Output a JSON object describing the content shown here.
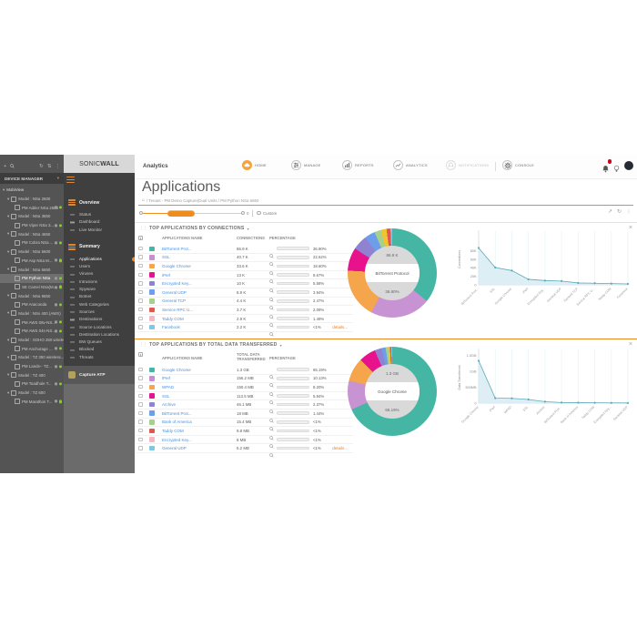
{
  "icons": {
    "close": "×",
    "caret_down": "▾",
    "grip": "⋮⋮",
    "home": "⌂",
    "plus": "+",
    "refresh": "↻",
    "sort": "⇅",
    "kebab": "⋮",
    "export": "↗"
  },
  "device_panel": {
    "header": "DEVICE MANAGER",
    "tree": [
      {
        "type": "root",
        "label": "MobiView"
      },
      {
        "type": "model",
        "label": "Model : NSa 2600"
      },
      {
        "type": "device",
        "label": "PM Adder NSa 2650"
      },
      {
        "type": "model",
        "label": "Model : NSa 3650"
      },
      {
        "type": "device",
        "label": "PM Viper NSa 3..."
      },
      {
        "type": "model",
        "label": "Model : NSa 4650"
      },
      {
        "type": "device",
        "label": "PM Cobra NSa ..."
      },
      {
        "type": "model",
        "label": "Model : NSa 5600"
      },
      {
        "type": "device",
        "label": "PM Asp NSa M..."
      },
      {
        "type": "model",
        "label": "Model : NSa 6650"
      },
      {
        "type": "device",
        "label": "PM Python NSa",
        "selected": true
      },
      {
        "type": "device",
        "label": "SE Camel NSa(M..."
      },
      {
        "type": "model",
        "label": "Model : NSa 9650"
      },
      {
        "type": "device",
        "label": "PM Anaconda"
      },
      {
        "type": "model",
        "label": "Model : NSv 400 (AWS)"
      },
      {
        "type": "device",
        "label": "PM AWS 08v-NS..."
      },
      {
        "type": "device",
        "label": "PM AWS 04s-NS..."
      },
      {
        "type": "model",
        "label": "Model : SOHO 250 wirele..."
      },
      {
        "type": "device",
        "label": "PM Anchorage ..."
      },
      {
        "type": "model",
        "label": "Model : TZ 350 wireless..."
      },
      {
        "type": "device",
        "label": "PM Lands-- TZ..."
      },
      {
        "type": "model",
        "label": "Model : TZ 400"
      },
      {
        "type": "device",
        "label": "PM Toadhole T..."
      },
      {
        "type": "model",
        "label": "Model : TZ 600"
      },
      {
        "type": "device",
        "label": "PM Marathon T..."
      }
    ]
  },
  "nav_panel": {
    "logo_left": "SONIC",
    "logo_right": "WALL",
    "sections": [
      {
        "label": "Overview",
        "items": [
          {
            "label": "Status"
          },
          {
            "label": "Dashboard"
          },
          {
            "label": "Live Monitor"
          }
        ]
      },
      {
        "label": "Summary",
        "items": [
          {
            "label": "Applications",
            "active": true
          },
          {
            "label": "Users"
          },
          {
            "label": "Viruses"
          },
          {
            "label": "Intrusions"
          },
          {
            "label": "Spyware"
          },
          {
            "label": "Botnet"
          },
          {
            "label": "Web Categories"
          },
          {
            "label": "Sources"
          },
          {
            "label": "Destinations"
          },
          {
            "label": "Source Locations"
          },
          {
            "label": "Destination Locations"
          },
          {
            "label": "BW Queues"
          },
          {
            "label": "Blocked"
          },
          {
            "label": "Threats"
          }
        ]
      }
    ],
    "capture_atp": "Capture ATP"
  },
  "topbar": {
    "product": "Analytics",
    "menu": [
      {
        "label": "HOME"
      },
      {
        "label": "MANAGE"
      },
      {
        "label": "REPORTS"
      },
      {
        "label": "ANALYTICS"
      },
      {
        "label": "NOTIFICATIONS",
        "disabled": true
      },
      {
        "label": "CONSOLE"
      }
    ]
  },
  "page": {
    "title": "Applications",
    "breadcrumb": "/ Tenant - PM Demo Capture(Dual Units / PM Python NSa 6650",
    "slider_value": "0",
    "custom_label": "Custom"
  },
  "sections": [
    {
      "title": "TOP APPLICATIONS BY CONNECTIONS",
      "columns": [
        "APPLICATIONS NAME",
        "CONNECTIONS",
        "PERCENTAGE"
      ],
      "details": "details...",
      "donut_center": {
        "value": "86.9 K",
        "label": "BitTorrent Protocol",
        "pct": "36.90%"
      },
      "rows": [
        {
          "name": "BitTorrent Prot...",
          "value": "86.9 K",
          "pct": "36.90%",
          "pct_value": 36.9,
          "color": "#45b5a4"
        },
        {
          "name": "SSL",
          "value": "40.7 K",
          "pct": "22.62%",
          "pct_value": 22.62,
          "color": "#c58fd1"
        },
        {
          "name": "Google Chrome",
          "value": "33.6 K",
          "pct": "18.60%",
          "pct_value": 18.6,
          "color": "#f5a54b"
        },
        {
          "name": "iPerf",
          "value": "13 K",
          "pct": "8.67%",
          "pct_value": 8.67,
          "color": "#e8138c"
        },
        {
          "name": "Encrypted Key...",
          "value": "10 K",
          "pct": "5.58%",
          "pct_value": 5.58,
          "color": "#8f83d1"
        },
        {
          "name": "General UDP",
          "value": "8.9 K",
          "pct": "3.94%",
          "pct_value": 3.94,
          "color": "#6d9eeb"
        },
        {
          "name": "General TCP",
          "value": "4.4 K",
          "pct": "2.47%",
          "pct_value": 2.47,
          "color": "#a8d08d"
        },
        {
          "name": "Service RPC U...",
          "value": "3.7 K",
          "pct": "2.09%",
          "pct_value": 2.09,
          "color": "#e2574c"
        },
        {
          "name": "Taddy COM",
          "value": "2.9 K",
          "pct": "1.49%",
          "pct_value": 1.49,
          "color": "#f4b8c1"
        },
        {
          "name": "Facebook",
          "value": "2.2 K",
          "pct": "<1%",
          "pct_value": 0.64,
          "color": "#7ec8e3"
        }
      ]
    },
    {
      "title": "TOP APPLICATIONS BY TOTAL DATA TRANSFERRED",
      "columns": [
        "APPLICATIONS NAME",
        "TOTAL DATA TRANSFERRED",
        "PERCENTAGE"
      ],
      "details": "details...",
      "donut_center": {
        "value": "1.3 GB",
        "label": "Google Chrome",
        "pct": "65.19%"
      },
      "rows": [
        {
          "name": "Google Chrome",
          "value": "1.3 GB",
          "pct": "65.19%",
          "pct_value": 65.19,
          "color": "#45b5a4"
        },
        {
          "name": "iPerf",
          "value": "156.2 MB",
          "pct": "10.13%",
          "pct_value": 10.13,
          "color": "#c58fd1"
        },
        {
          "name": "WPAD",
          "value": "150.4 MB",
          "pct": "8.20%",
          "pct_value": 8.2,
          "color": "#f5a54b"
        },
        {
          "name": "SSL",
          "value": "113.5 MB",
          "pct": "5.84%",
          "pct_value": 5.84,
          "color": "#e8138c"
        },
        {
          "name": "Archive",
          "value": "46.1 MB",
          "pct": "2.37%",
          "pct_value": 2.37,
          "color": "#8f83d1"
        },
        {
          "name": "BitTorrent Prot...",
          "value": "18 MB",
          "pct": "1.44%",
          "pct_value": 1.44,
          "color": "#6d9eeb"
        },
        {
          "name": "Bank of America",
          "value": "15.4 MB",
          "pct": "<1%",
          "pct_value": 0.9,
          "color": "#a8d08d"
        },
        {
          "name": "Taddy COM",
          "value": "9.8 MB",
          "pct": "<1%",
          "pct_value": 0.6,
          "color": "#e2574c"
        },
        {
          "name": "Encrypted Key...",
          "value": "8 MB",
          "pct": "<1%",
          "pct_value": 0.5,
          "color": "#f4b8c1"
        },
        {
          "name": "General UDP",
          "value": "5.2 MB",
          "pct": "<1%",
          "pct_value": 0.3,
          "color": "#7ec8e3"
        }
      ]
    }
  ],
  "chart_data": [
    {
      "type": "pie",
      "title": "Top Applications by Connections",
      "labels": [
        "BitTorrent Prot...",
        "SSL",
        "Google Chrome",
        "iPerf",
        "Encrypted Key...",
        "General UDP",
        "General TCP",
        "Service RPC U...",
        "Taddy COM",
        "Facebook"
      ],
      "values": [
        36.9,
        22.62,
        18.6,
        8.67,
        5.58,
        3.94,
        2.47,
        2.09,
        1.49,
        0.64
      ],
      "colors": [
        "#45b5a4",
        "#c893d2",
        "#f5a54b",
        "#e8138c",
        "#8f83d1",
        "#6d9eeb",
        "#a8d08d",
        "#f1c232",
        "#e2574c",
        "#7ec8e3"
      ],
      "center_label": [
        "86.9 K",
        "BitTorrent Protocol",
        "36.90%"
      ]
    },
    {
      "type": "area",
      "title": "Connections per application",
      "ylabel": "Connections",
      "yticks": [
        "80K",
        "60K",
        "40K",
        "20K",
        "0"
      ],
      "ytick_values": [
        80000,
        60000,
        40000,
        20000,
        0
      ],
      "ymax": 120000,
      "x": [
        "BitTorrent Prot...",
        "SSL",
        "Google Chrome",
        "iPerf",
        "Encrypted Key...",
        "General UDP",
        "General TCP",
        "Service RPC U...",
        "Taddy COM",
        "Facebook"
      ],
      "y": [
        86900,
        40700,
        33600,
        13000,
        10000,
        8900,
        4400,
        3700,
        2900,
        2200
      ]
    },
    {
      "type": "pie",
      "title": "Top Applications by Total Data Transferred",
      "labels": [
        "Google Chrome",
        "iPerf",
        "WPAD",
        "SSL",
        "Archive",
        "BitTorrent Prot...",
        "Bank of America",
        "Taddy COM",
        "Encrypted Key...",
        "General UDP"
      ],
      "values": [
        65.19,
        10.13,
        8.2,
        5.84,
        2.37,
        1.44,
        0.9,
        0.6,
        0.5,
        0.3
      ],
      "colors": [
        "#45b5a4",
        "#c893d2",
        "#f5a54b",
        "#e8138c",
        "#8f83d1",
        "#6d9eeb",
        "#a8d08d",
        "#f1c232",
        "#e2574c",
        "#7ec8e3"
      ],
      "center_label": [
        "1.3 GB",
        "Google Chrome",
        "65.19%"
      ]
    },
    {
      "type": "area",
      "title": "Data transferred per application",
      "ylabel": "Data Transferred",
      "yticks": [
        "1.5GB",
        "1GB",
        "500MB",
        "0"
      ],
      "ytick_values": [
        1500,
        1000,
        500,
        0
      ],
      "ymax": 1600,
      "x": [
        "Google Chrome",
        "iPerf",
        "WPAD",
        "SSL",
        "Archive",
        "BitTorrent Prot...",
        "Bank of America",
        "Taddy COM",
        "Encrypted Key...",
        "General UDP"
      ],
      "y": [
        1331,
        156.2,
        150.4,
        113.5,
        46.1,
        18,
        15.4,
        9.8,
        8,
        5.2
      ]
    }
  ],
  "colors": {
    "accent_orange": "#ef8a1f",
    "link_blue": "#4a90d9",
    "bar_fill": "#c2cc4e",
    "line_teal": "#5fa9b8",
    "donut_hole": "#d9d9d9",
    "badge_red": "#d0021b"
  }
}
